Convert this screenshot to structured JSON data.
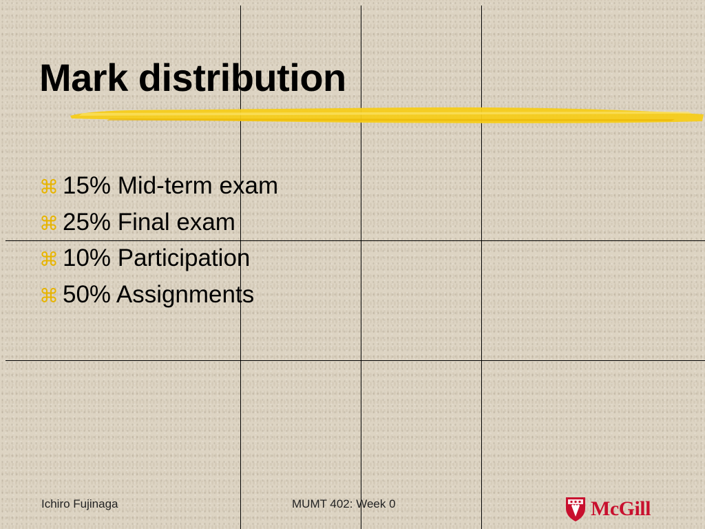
{
  "slide": {
    "title": "Mark distribution",
    "bullet_icon": "command-key-bullet-icon",
    "bullets": [
      "15% Mid-term exam",
      "25% Final exam",
      "10% Participation",
      "50% Assignments"
    ]
  },
  "footer": {
    "author": "Ichiro Fujinaga",
    "course": "MUMT 402: Week 0",
    "logo_text": "McGill"
  },
  "colors": {
    "background": "#ddd4c3",
    "highlighter": "#f5cc1a",
    "bullet": "#e7b400",
    "logo_red": "#c8102e"
  }
}
